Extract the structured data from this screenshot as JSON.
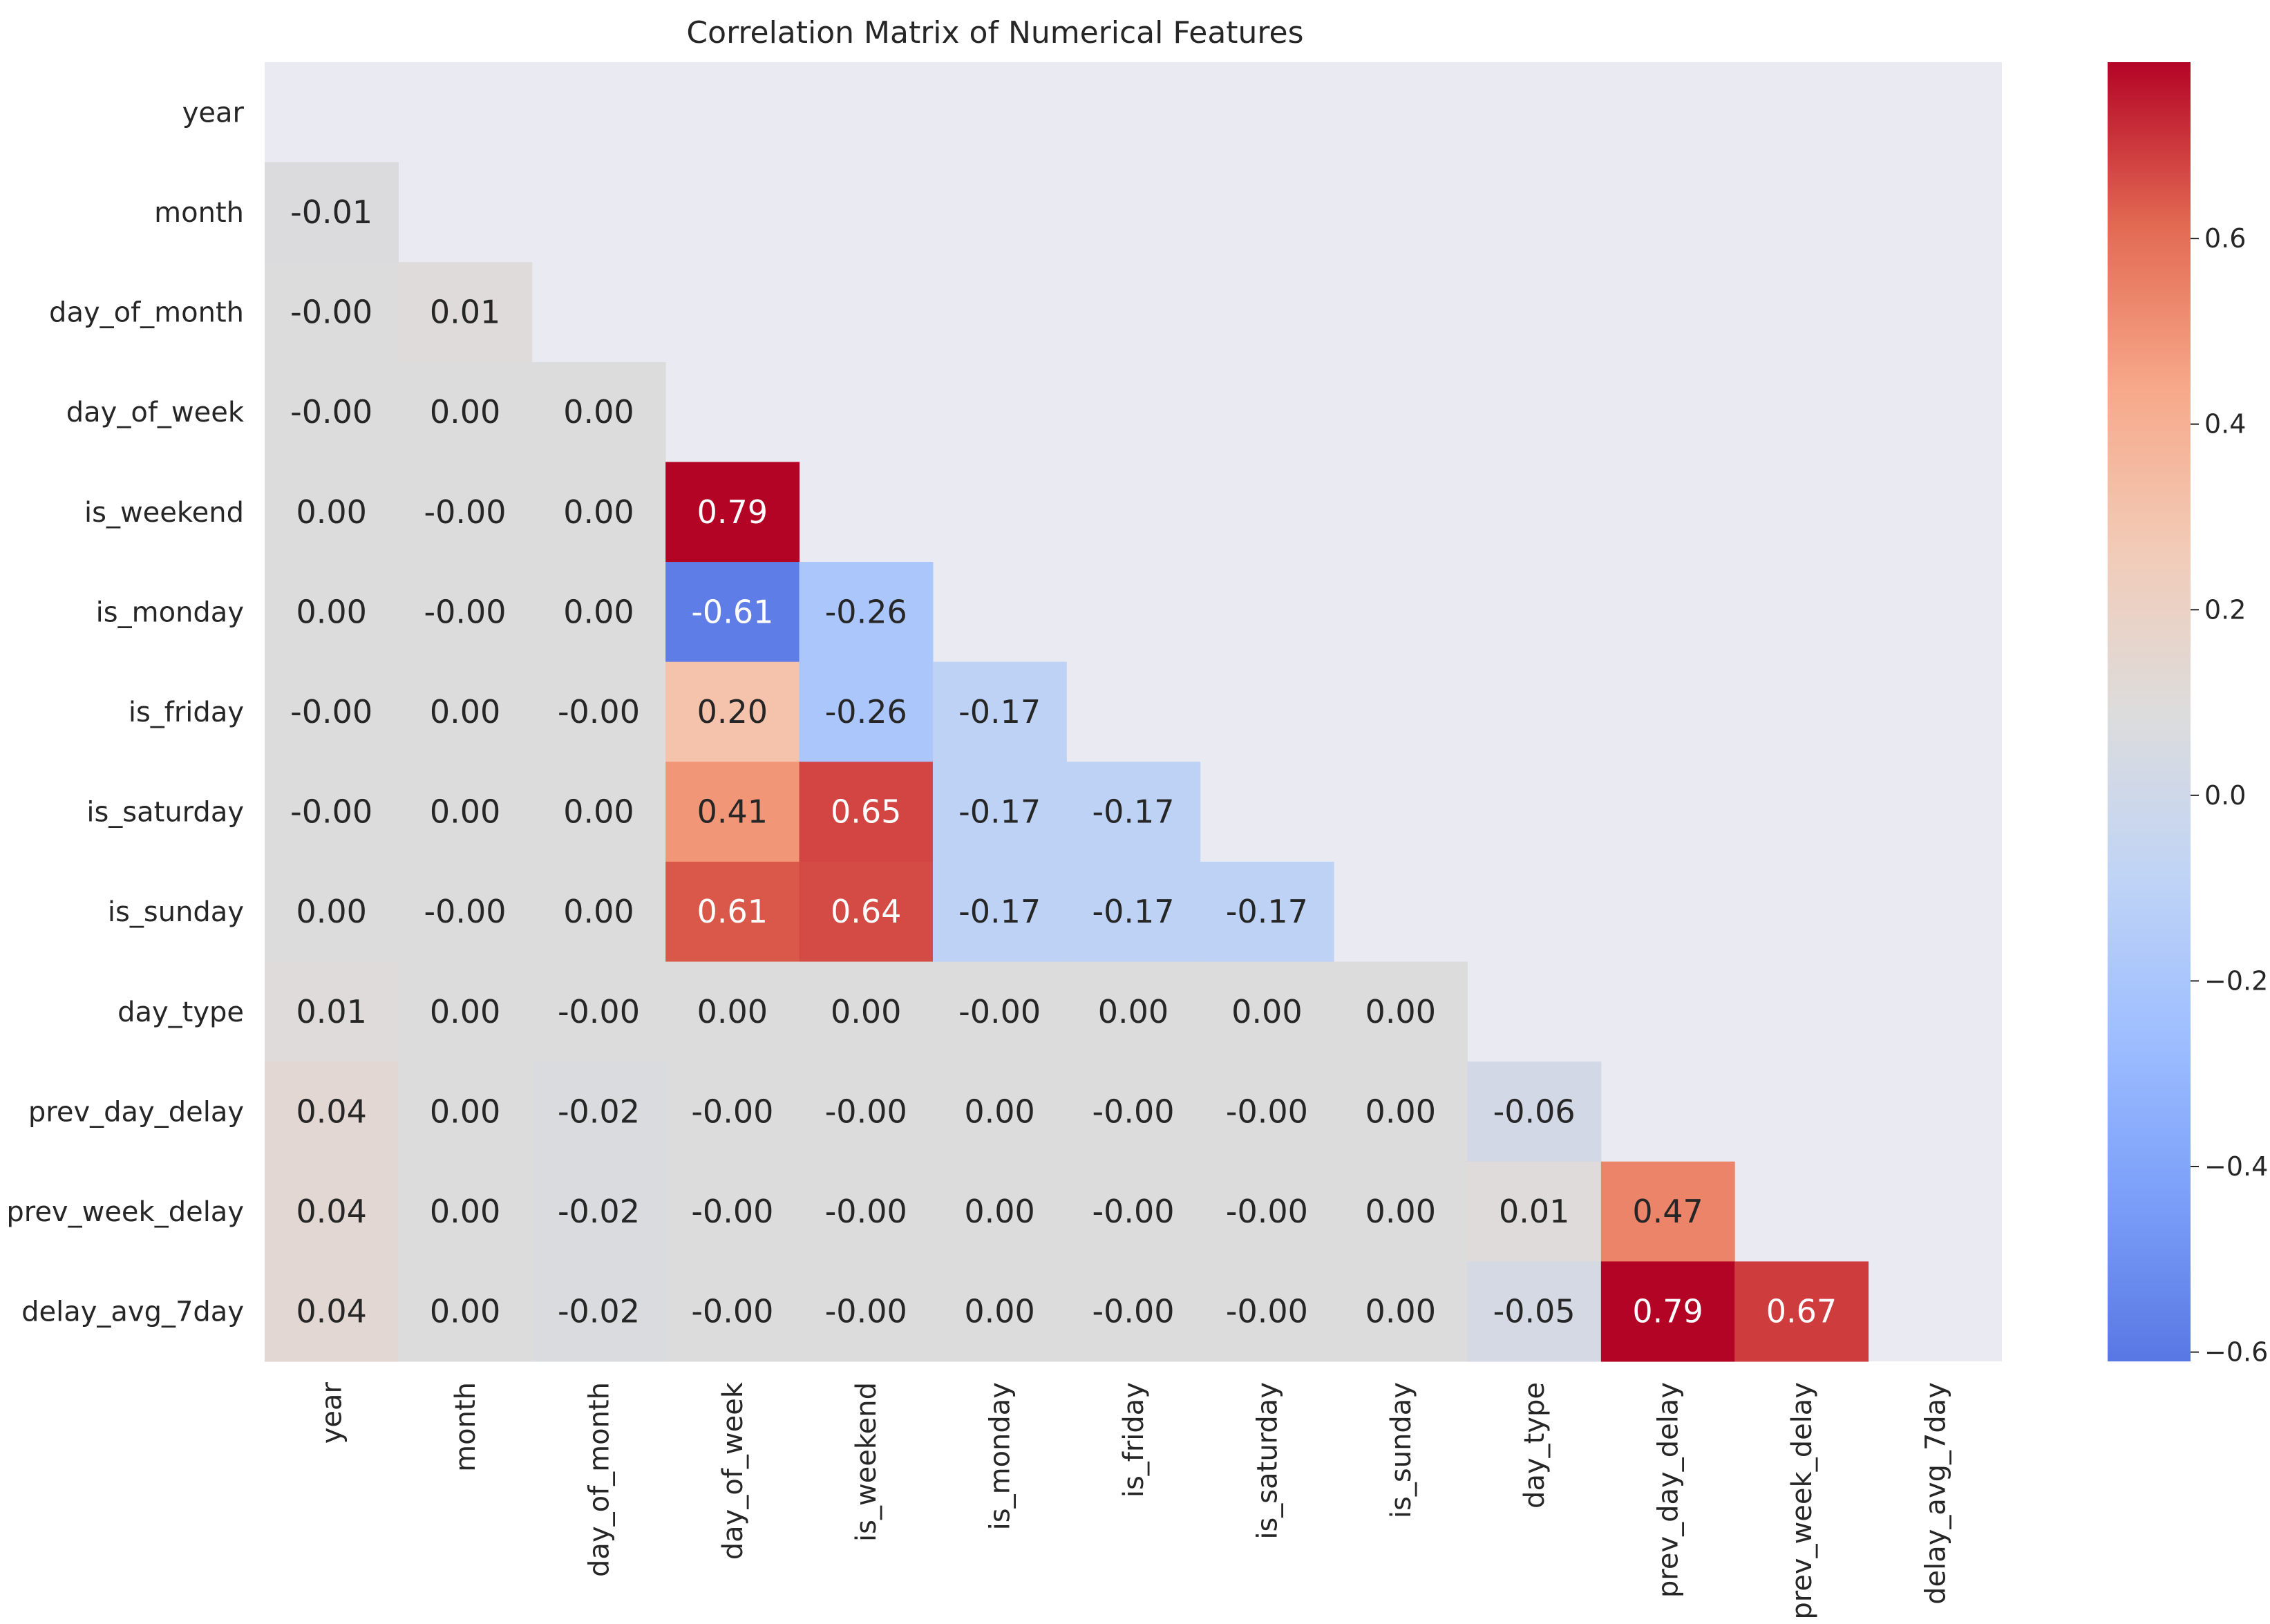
{
  "chart_data": {
    "type": "heatmap",
    "title": "Correlation Matrix of Numerical Features",
    "colormap": "coolwarm",
    "mask": "upper-triangle-including-diagonal",
    "vmin": -0.61,
    "vmax": 0.79,
    "labels": [
      "year",
      "month",
      "day_of_month",
      "day_of_week",
      "is_weekend",
      "is_monday",
      "is_friday",
      "is_saturday",
      "is_sunday",
      "day_type",
      "prev_day_delay",
      "prev_week_delay",
      "delay_avg_7day"
    ],
    "matrix": [
      [],
      [
        "-0.01"
      ],
      [
        "-0.00",
        "0.01"
      ],
      [
        "-0.00",
        "0.00",
        "0.00"
      ],
      [
        "0.00",
        "-0.00",
        "0.00",
        "0.79"
      ],
      [
        "0.00",
        "-0.00",
        "0.00",
        "-0.61",
        "-0.26"
      ],
      [
        "-0.00",
        "0.00",
        "-0.00",
        "0.20",
        "-0.26",
        "-0.17"
      ],
      [
        "-0.00",
        "0.00",
        "0.00",
        "0.41",
        "0.65",
        "-0.17",
        "-0.17"
      ],
      [
        "0.00",
        "-0.00",
        "0.00",
        "0.61",
        "0.64",
        "-0.17",
        "-0.17",
        "-0.17"
      ],
      [
        "0.01",
        "0.00",
        "-0.00",
        "0.00",
        "0.00",
        "-0.00",
        "0.00",
        "0.00",
        "0.00"
      ],
      [
        "0.04",
        "0.00",
        "-0.02",
        "-0.00",
        "-0.00",
        "0.00",
        "-0.00",
        "-0.00",
        "0.00",
        "-0.06"
      ],
      [
        "0.04",
        "0.00",
        "-0.02",
        "-0.00",
        "-0.00",
        "0.00",
        "-0.00",
        "-0.00",
        "0.00",
        "0.01",
        "0.47"
      ],
      [
        "0.04",
        "0.00",
        "-0.02",
        "-0.00",
        "-0.00",
        "0.00",
        "-0.00",
        "-0.00",
        "0.00",
        "-0.05",
        "0.79",
        "0.67"
      ]
    ],
    "colorbar_ticks": [
      "0.6",
      "0.4",
      "0.2",
      "0.0",
      "−0.2",
      "−0.4",
      "−0.6"
    ],
    "colorbar_tick_values": [
      0.6,
      0.4,
      0.2,
      0.0,
      -0.2,
      -0.4,
      -0.6
    ],
    "background_color": "#eaeaf2"
  }
}
